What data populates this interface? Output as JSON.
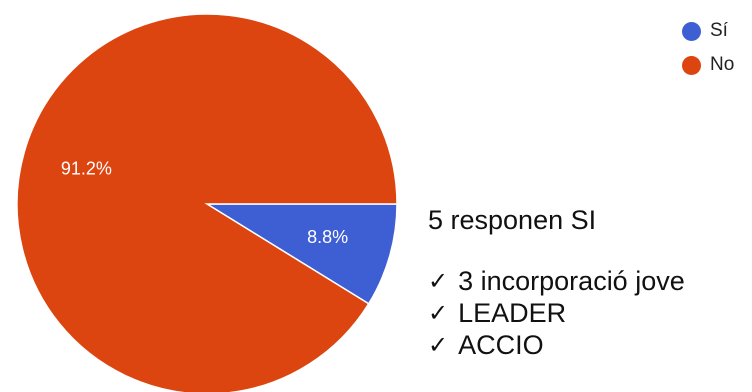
{
  "chart_data": {
    "type": "pie",
    "slices": [
      {
        "label": "Sí",
        "value": 8.8,
        "display": "8.8%",
        "color": "#3e5fd3"
      },
      {
        "label": "No",
        "value": 91.2,
        "display": "91.2%",
        "color": "#dc4410"
      }
    ],
    "legend_position": "top-right"
  },
  "note": {
    "heading": "5 responen SI",
    "items": [
      "3 incorporació jove",
      "LEADER",
      "ACCIO"
    ],
    "check_icon": "checkmark-icon"
  }
}
